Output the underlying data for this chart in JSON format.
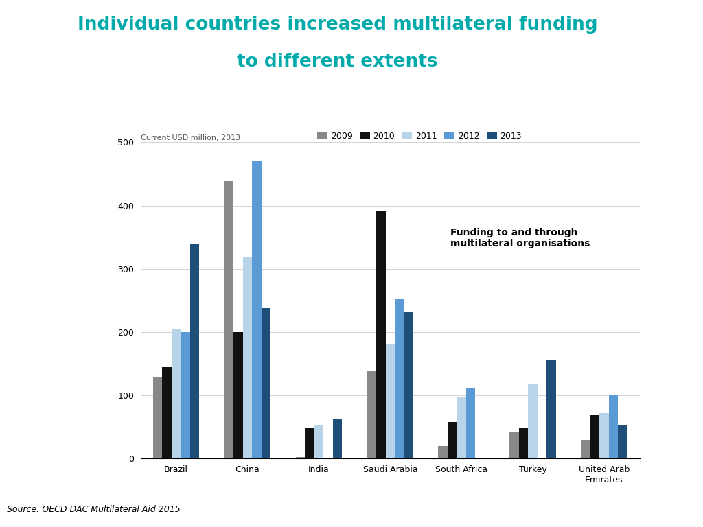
{
  "title_line1": "Individual countries increased multilateral funding",
  "title_line2": "to different extents",
  "title_color": "#00AAAA",
  "subtitle": "Current USD million, 2013",
  "source": "Source: OECD DAC Multilateral Aid 2015",
  "annotation": "Funding to and through\nmultilateral organisations",
  "categories": [
    "Brazil",
    "China",
    "India",
    "Saudi Arabia",
    "South Africa",
    "Turkey",
    "United Arab\nEmirates"
  ],
  "years": [
    "2009",
    "2010",
    "2011",
    "2012",
    "2013"
  ],
  "colors": {
    "2009": "#888888",
    "2010": "#111111",
    "2011": "#B8D4E8",
    "2012": "#5B9BD5",
    "2013": "#1F4E79"
  },
  "data": {
    "Brazil": [
      128,
      145,
      205,
      200,
      340
    ],
    "China": [
      438,
      200,
      318,
      470,
      238
    ],
    "India": [
      2,
      48,
      52,
      0,
      63
    ],
    "Saudi Arabia": [
      138,
      392,
      180,
      252,
      232
    ],
    "South Africa": [
      20,
      58,
      98,
      112,
      0
    ],
    "Turkey": [
      42,
      48,
      118,
      0,
      155
    ],
    "United Arab\nEmirates": [
      30,
      68,
      72,
      100,
      52
    ]
  },
  "ylim": [
    0,
    500
  ],
  "yticks": [
    0,
    100,
    200,
    300,
    400,
    500
  ],
  "background_color": "#FFFFFF",
  "sidebar_teal": "#4AAFAF",
  "sidebar_gold": "#C8A84B"
}
